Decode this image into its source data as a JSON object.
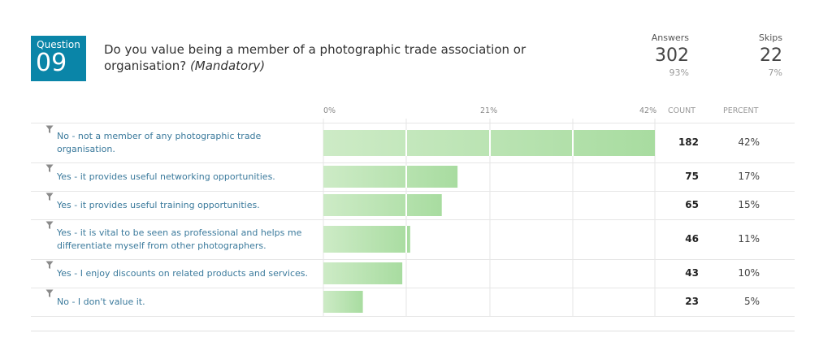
{
  "question": {
    "badge_label": "Question",
    "number": "09",
    "title_main": "Do you value being a member of a photographic trade association or organisation? ",
    "title_tag": "(Mandatory)"
  },
  "stats": {
    "answers_label": "Answers",
    "answers_value": "302",
    "answers_pct": "93%",
    "skips_label": "Skips",
    "skips_value": "22",
    "skips_pct": "7%"
  },
  "table_headers": {
    "tick_0": "0%",
    "tick_21": "21%",
    "tick_42": "42%",
    "count": "COUNT",
    "percent": "PERCENT"
  },
  "chart_data": {
    "type": "bar",
    "orientation": "horizontal",
    "xlim": [
      0,
      42
    ],
    "xticks": [
      "0%",
      "21%",
      "42%"
    ],
    "bar_color": "#a8dca0",
    "grid": true,
    "rows": [
      {
        "label": "No - not a member of any photographic trade organisation.",
        "count": "182",
        "percent": "42%",
        "value": 42
      },
      {
        "label": "Yes - it provides useful networking opportunities.",
        "count": "75",
        "percent": "17%",
        "value": 17
      },
      {
        "label": "Yes - it provides useful training opportunities.",
        "count": "65",
        "percent": "15%",
        "value": 15
      },
      {
        "label": "Yes - it is vital to be seen as professional and helps me differentiate myself from other photographers.",
        "count": "46",
        "percent": "11%",
        "value": 11
      },
      {
        "label": "Yes - I enjoy discounts on related products and services.",
        "count": "43",
        "percent": "10%",
        "value": 10
      },
      {
        "label": "No - I don't value it.",
        "count": "23",
        "percent": "5%",
        "value": 5
      }
    ]
  }
}
